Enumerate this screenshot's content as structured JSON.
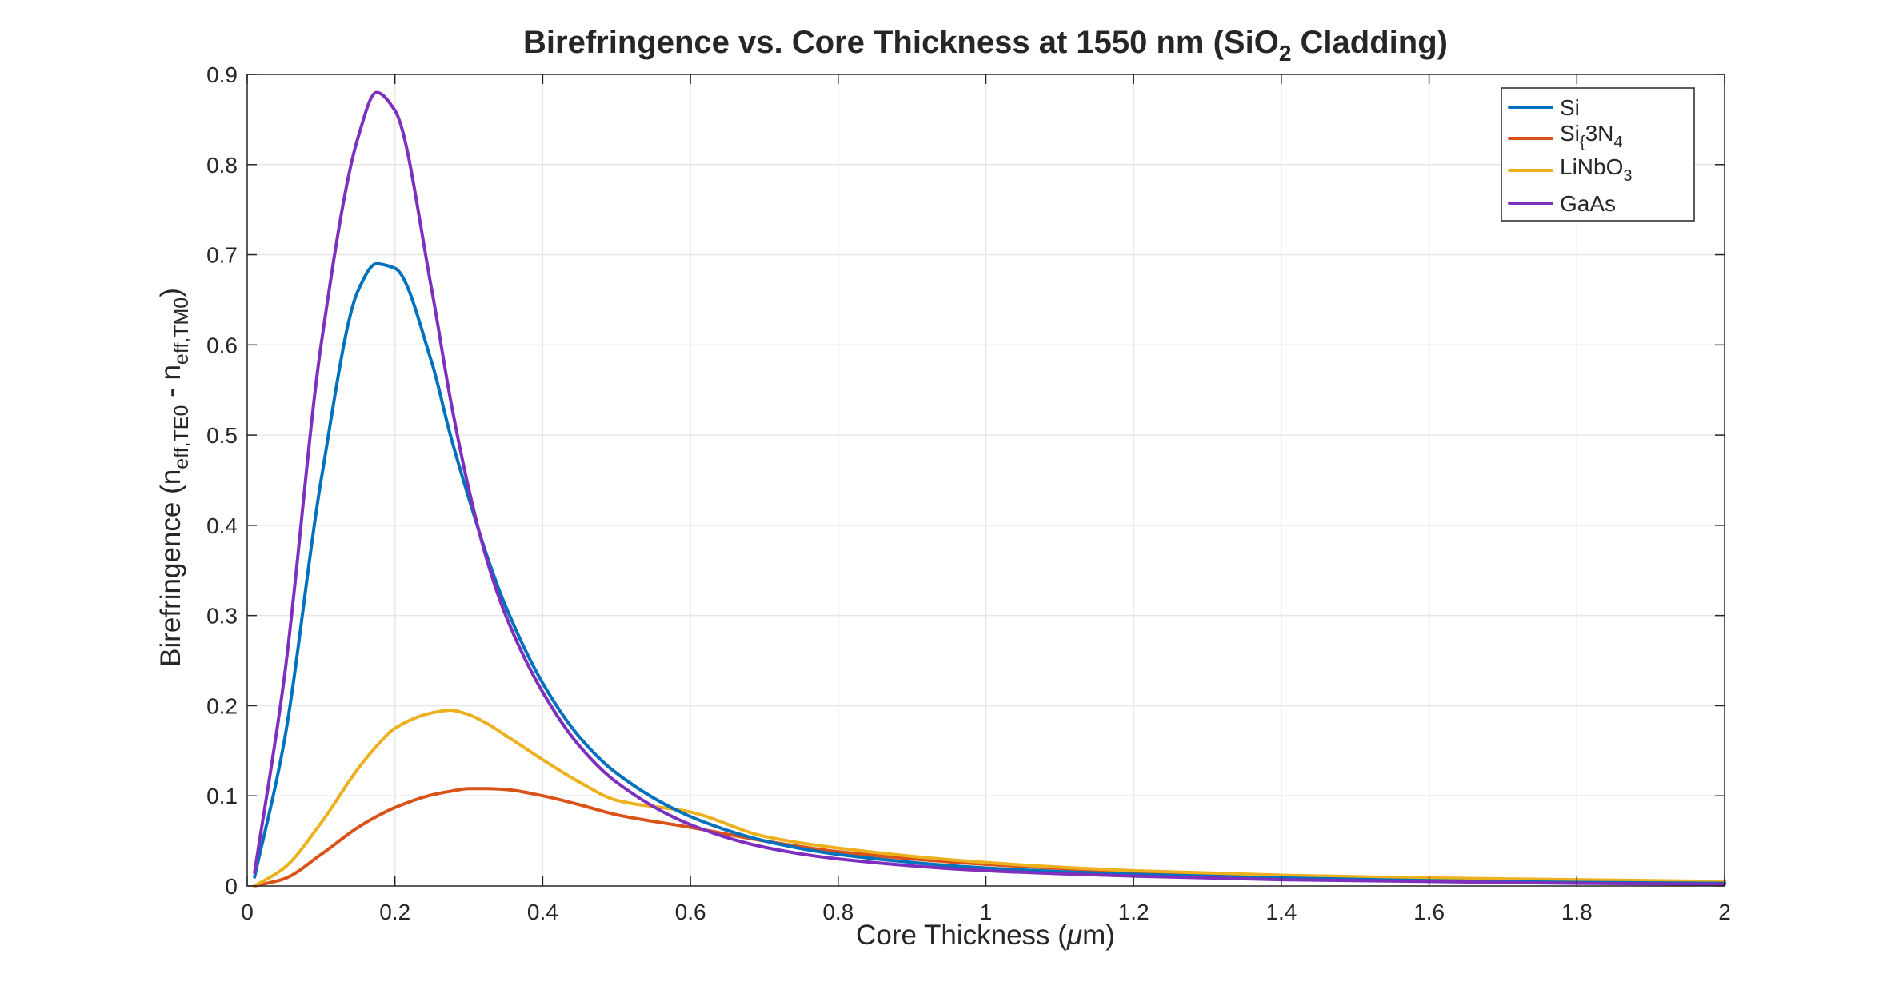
{
  "chart_data": {
    "type": "line",
    "title": {
      "prefix": "Birefringence  vs.  Core  Thickness  at  1550  nm  (SiO",
      "sub": "2",
      "suffix": "  Cladding)"
    },
    "xlabel": {
      "pre": "Core  Thickness  (",
      "mu": "μ",
      "post": "m)"
    },
    "ylabel": {
      "pre": "Birefringence  (n",
      "sub1": "eff,TE0",
      "mid": "  -  n",
      "sub2": "eff,TM0",
      "post": ")"
    },
    "xlim": [
      0,
      2
    ],
    "ylim": [
      0,
      0.9
    ],
    "xticks": [
      0,
      0.2,
      0.4,
      0.6,
      0.8,
      1,
      1.2,
      1.4,
      1.6,
      1.8,
      2
    ],
    "xtick_labels": [
      "0",
      "0.2",
      "0.4",
      "0.6",
      "0.8",
      "1",
      "1.2",
      "1.4",
      "1.6",
      "1.8",
      "2"
    ],
    "yticks": [
      0,
      0.1,
      0.2,
      0.3,
      0.4,
      0.5,
      0.6,
      0.7,
      0.8,
      0.9
    ],
    "ytick_labels": [
      "0",
      "0.1",
      "0.2",
      "0.3",
      "0.4",
      "0.5",
      "0.6",
      "0.7",
      "0.8",
      "0.9"
    ],
    "grid": true,
    "legend_position": "top-right",
    "x": [
      0.01,
      0.05,
      0.1,
      0.15,
      0.175,
      0.2,
      0.25,
      0.275,
      0.3,
      0.325,
      0.35,
      0.4,
      0.45,
      0.5,
      0.6,
      0.7,
      0.8,
      1.0,
      1.2,
      1.4,
      1.6,
      1.8,
      2.0
    ],
    "series": [
      {
        "name": "Si",
        "legend_parts": [
          "Si"
        ],
        "color": "#0072BD",
        "values": [
          0.01,
          0.16,
          0.45,
          0.66,
          0.69,
          0.685,
          0.58,
          0.5,
          0.43,
          0.365,
          0.31,
          0.225,
          0.165,
          0.125,
          0.077,
          0.05,
          0.035,
          0.02,
          0.013,
          0.009,
          0.006,
          0.004,
          0.003
        ]
      },
      {
        "name": "Si{3N4",
        "legend_parts": [
          "Si",
          "{",
          "3N",
          "4"
        ],
        "color": "#D95319",
        "values": [
          0.0,
          0.008,
          0.035,
          0.065,
          0.077,
          0.087,
          0.101,
          0.105,
          0.108,
          0.108,
          0.107,
          0.1,
          0.09,
          0.079,
          0.065,
          0.05,
          0.038,
          0.024,
          0.016,
          0.011,
          0.008,
          0.006,
          0.005
        ]
      },
      {
        "name": "LiNbO3",
        "legend_parts": [
          "LiNbO",
          "3"
        ],
        "color": "#EDB120",
        "values": [
          0.0,
          0.02,
          0.07,
          0.13,
          0.155,
          0.175,
          0.192,
          0.195,
          0.19,
          0.18,
          0.167,
          0.14,
          0.115,
          0.095,
          0.082,
          0.055,
          0.042,
          0.026,
          0.017,
          0.012,
          0.009,
          0.007,
          0.005
        ]
      },
      {
        "name": "GaAs",
        "legend_parts": [
          "GaAs"
        ],
        "color": "#7E2FBE",
        "values": [
          0.015,
          0.23,
          0.6,
          0.83,
          0.88,
          0.86,
          0.66,
          0.54,
          0.44,
          0.36,
          0.3,
          0.215,
          0.155,
          0.115,
          0.068,
          0.043,
          0.03,
          0.017,
          0.011,
          0.007,
          0.005,
          0.003,
          0.002
        ]
      }
    ]
  }
}
